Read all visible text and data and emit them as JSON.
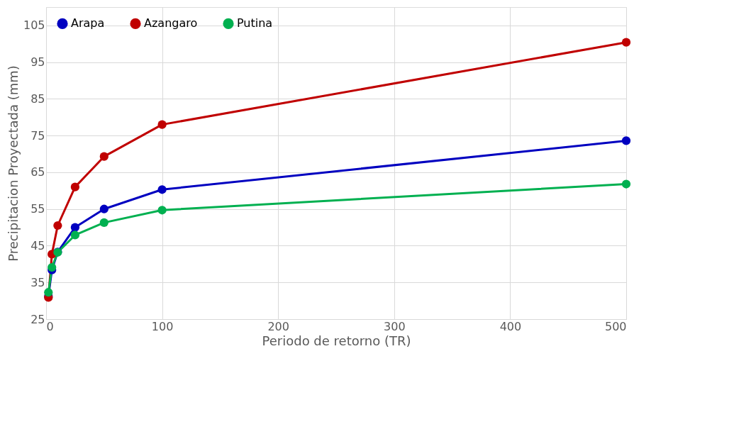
{
  "chart_data": {
    "type": "line",
    "xlabel": "Periodo de retorno (TR)",
    "ylabel": "Precipitacion Proyectada (mm)",
    "x": [
      2,
      5,
      10,
      25,
      50,
      100,
      500
    ],
    "series": [
      {
        "name": "Arapa",
        "color": "#0000c0",
        "values": [
          31.2,
          38.4,
          43.3,
          50.0,
          55.0,
          60.3,
          73.6
        ]
      },
      {
        "name": "Azangaro",
        "color": "#c00000",
        "values": [
          30.9,
          42.7,
          50.5,
          61.0,
          69.3,
          78.0,
          100.4
        ]
      },
      {
        "name": "Putina",
        "color": "#00b050",
        "values": [
          32.3,
          39.1,
          43.2,
          47.9,
          51.3,
          54.7,
          61.8
        ]
      }
    ],
    "xlim": [
      0,
      500
    ],
    "xticks": [
      0,
      100,
      200,
      300,
      400,
      500
    ],
    "ylim": [
      25,
      110
    ],
    "yticks": [
      25,
      35,
      45,
      55,
      65,
      75,
      85,
      95,
      105
    ],
    "grid": true,
    "legend": "top left",
    "marker": "circle",
    "line_style": "solid"
  }
}
